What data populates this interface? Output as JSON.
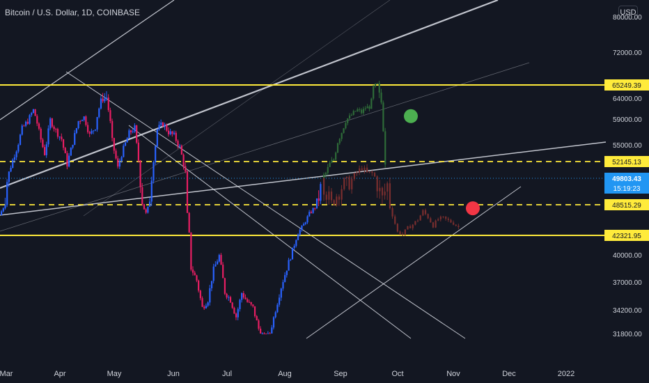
{
  "header": {
    "title": "Bitcoin / U.S. Dollar, 1D, COINBASE",
    "currency_button": "USD"
  },
  "colors": {
    "background": "#131722",
    "up": "#2962ff",
    "down": "#e91e63",
    "projection_up": "#2e6b38",
    "projection_down": "#7a2e2e",
    "level_line": "#ffeb3b",
    "trend_line": "#e0e3eb",
    "last_price_tag": "#2196f3",
    "green_dot": "#4caf50",
    "red_dot": "#f23645"
  },
  "chart_data": {
    "type": "candlestick",
    "symbol": "Bitcoin / U.S. Dollar",
    "interval": "1D",
    "exchange": "COINBASE",
    "y_ticks": [
      80000,
      72000,
      64000,
      59000,
      55000,
      40000,
      37000,
      34200,
      31800
    ],
    "y_tick_labels": [
      "80000.00",
      "72000.00",
      "64000.00",
      "59000.00",
      "55000.00",
      "40000.00",
      "37000.00",
      "34200.00",
      "31800.00"
    ],
    "x_tick_labels": [
      "Mar",
      "Apr",
      "May",
      "Jun",
      "Jul",
      "Aug",
      "Sep",
      "Oct",
      "Nov",
      "Dec",
      "2022"
    ],
    "price_levels": [
      {
        "value": 65249.39,
        "label": "65249.39",
        "style": "solid"
      },
      {
        "value": 52145.13,
        "label": "52145.13",
        "style": "dashed"
      },
      {
        "value": 48515.29,
        "label": "48515.29",
        "style": "dashed"
      },
      {
        "value": 42321.95,
        "label": "42321.95",
        "style": "solid"
      }
    ],
    "last_price": {
      "value": 49803.43,
      "label": "49803.43",
      "countdown": "15:19:23"
    },
    "series": [
      {
        "type": "actual",
        "closes": [
          46400,
          48800,
          51500,
          54200,
          57500,
          58700,
          61200,
          57000,
          53500,
          58900,
          57200,
          55900,
          51800,
          55400,
          58700,
          59500,
          56500,
          57800,
          63500,
          64100,
          55500,
          51200,
          54400,
          56800,
          57600,
          49800,
          46700,
          50000,
          57400,
          58300,
          57000,
          56400,
          54600,
          50500,
          38600,
          37200,
          34400,
          35200,
          38400,
          39900,
          36000,
          35200,
          33500,
          35900,
          35000,
          34400,
          32300,
          31200,
          31800,
          34200,
          36500,
          38500,
          40500,
          42800,
          44500,
          46700,
          48000,
          49300
        ]
      },
      {
        "type": "bullish-projection",
        "closes": [
          49800,
          50500,
          51800,
          52500,
          55500,
          57000,
          58800,
          59500,
          60500,
          61200,
          60600,
          61700,
          61900,
          64800,
          65249,
          63000,
          52145
        ]
      },
      {
        "type": "bearish-projection",
        "closes": [
          49800,
          49100,
          48500,
          49000,
          49400,
          49600,
          49700,
          50600,
          51300,
          50500,
          50500,
          49500,
          48800,
          49500,
          46500,
          43000,
          42600,
          43800,
          44500,
          45500,
          47200,
          46000,
          44300,
          45600,
          45800,
          45300,
          44800,
          44000
        ]
      }
    ],
    "annotations": [
      {
        "type": "dot",
        "color": "green",
        "x_label": "Oct",
        "y": 59700
      },
      {
        "type": "dot",
        "color": "red",
        "x_label": "Nov",
        "y": 47800
      }
    ],
    "grid": false
  }
}
